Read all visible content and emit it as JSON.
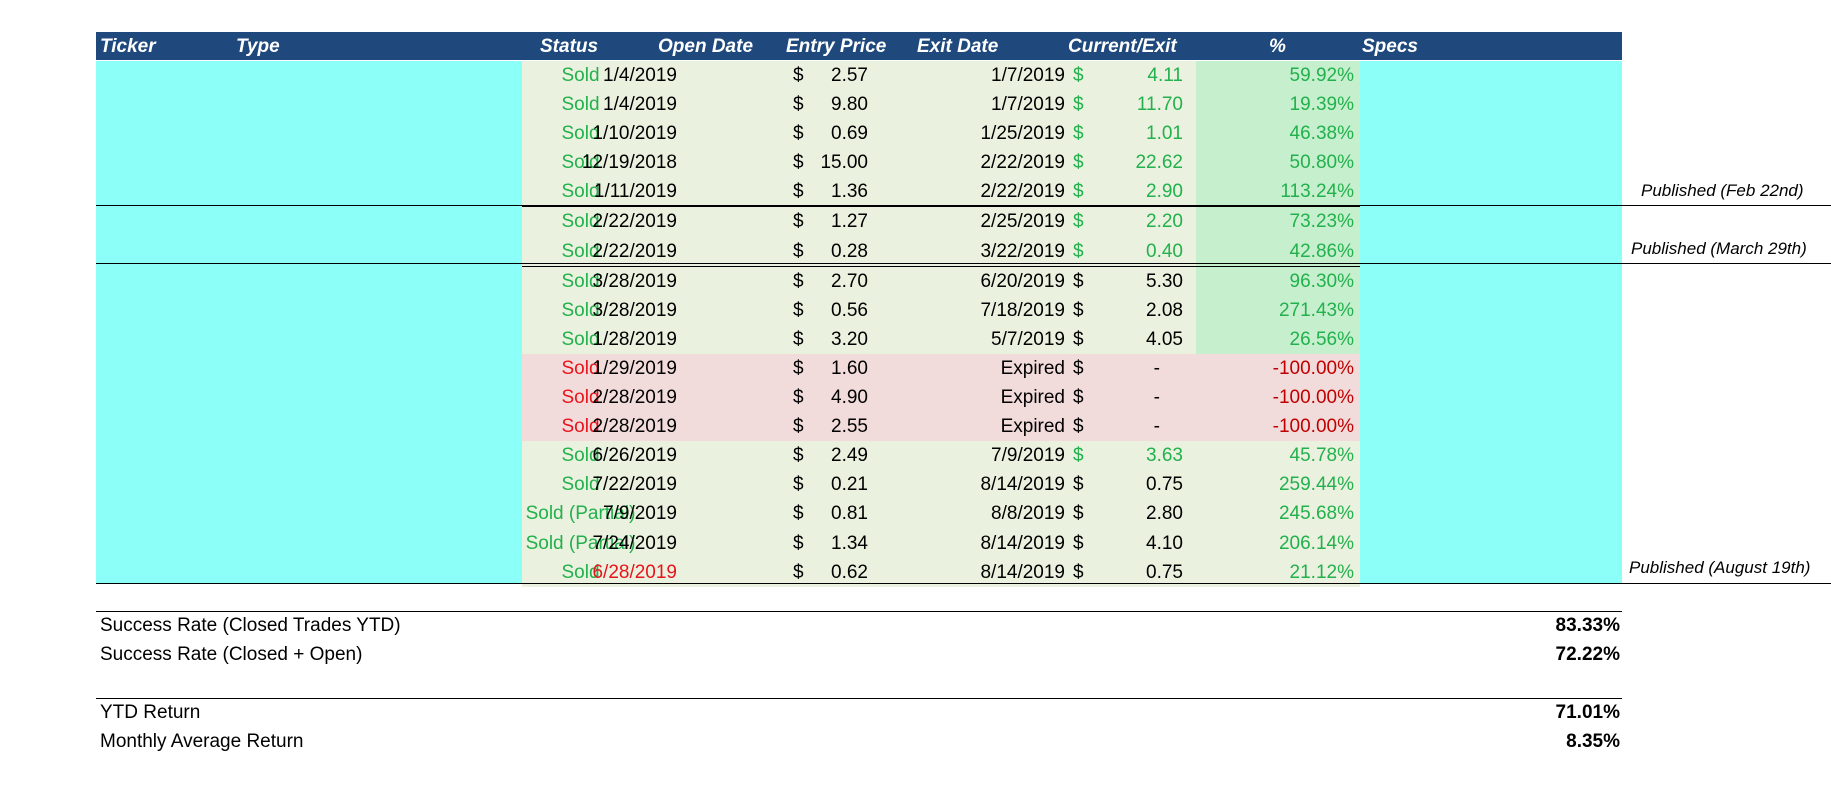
{
  "header": {
    "ticker": "Ticker",
    "type": "Type",
    "status": "Status",
    "open_date": "Open Date",
    "entry_price": "Entry Price",
    "exit_date": "Exit Date",
    "current_exit": "Current/Exit",
    "pct": "%",
    "specs": "Specs"
  },
  "currency_symbol": "$",
  "rows": [
    {
      "status": "Sold",
      "open": "1/4/2019",
      "entry": "2.57",
      "exit": "1/7/2019",
      "current": "4.11",
      "pct": "59.92%"
    },
    {
      "status": "Sold",
      "open": "1/4/2019",
      "entry": "9.80",
      "exit": "1/7/2019",
      "current": "11.70",
      "pct": "19.39%"
    },
    {
      "status": "Sold",
      "open": "1/10/2019",
      "entry": "0.69",
      "exit": "1/25/2019",
      "current": "1.01",
      "pct": "46.38%"
    },
    {
      "status": "Sold",
      "open": "12/19/2018",
      "entry": "15.00",
      "exit": "2/22/2019",
      "current": "22.62",
      "pct": "50.80%"
    },
    {
      "status": "Sold",
      "open": "1/11/2019",
      "entry": "1.36",
      "exit": "2/22/2019",
      "current": "2.90",
      "pct": "113.24%"
    },
    {
      "status": "Sold",
      "open": "2/22/2019",
      "entry": "1.27",
      "exit": "2/25/2019",
      "current": "2.20",
      "pct": "73.23%"
    },
    {
      "status": "Sold",
      "open": "2/22/2019",
      "entry": "0.28",
      "exit": "3/22/2019",
      "current": "0.40",
      "pct": "42.86%"
    },
    {
      "status": "Sold",
      "open": "3/28/2019",
      "entry": "2.70",
      "exit": "6/20/2019",
      "current": "5.30",
      "pct": "96.30%"
    },
    {
      "status": "Sold",
      "open": "3/28/2019",
      "entry": "0.56",
      "exit": "7/18/2019",
      "current": "2.08",
      "pct": "271.43%"
    },
    {
      "status": "Sold",
      "open": "1/28/2019",
      "entry": "3.20",
      "exit": "5/7/2019",
      "current": "4.05",
      "pct": "26.56%"
    },
    {
      "status": "Sold",
      "open": "1/29/2019",
      "entry": "1.60",
      "exit": "Expired",
      "current": "-",
      "pct": "-100.00%"
    },
    {
      "status": "Sold",
      "open": "2/28/2019",
      "entry": "4.90",
      "exit": "Expired",
      "current": "-",
      "pct": "-100.00%"
    },
    {
      "status": "Sold",
      "open": "2/28/2019",
      "entry": "2.55",
      "exit": "Expired",
      "current": "-",
      "pct": "-100.00%"
    },
    {
      "status": "Sold",
      "open": "6/26/2019",
      "entry": "2.49",
      "exit": "7/9/2019",
      "current": "3.63",
      "pct": "45.78%"
    },
    {
      "status": "Sold",
      "open": "7/22/2019",
      "entry": "0.21",
      "exit": "8/14/2019",
      "current": "0.75",
      "pct": "259.44%"
    },
    {
      "status": "Sold (Partial)",
      "open": "7/9/2019",
      "entry": "0.81",
      "exit": "8/8/2019",
      "current": "2.80",
      "pct": "245.68%"
    },
    {
      "status": "Sold (Partial)",
      "open": "7/24/2019",
      "entry": "1.34",
      "exit": "8/14/2019",
      "current": "4.10",
      "pct": "206.14%"
    },
    {
      "status": "Sold",
      "open": "6/28/2019",
      "entry": "0.62",
      "exit": "8/14/2019",
      "current": "0.75",
      "pct": "21.12%"
    }
  ],
  "notes": {
    "feb": "Published (Feb 22nd)",
    "march": "Published (March 29th)",
    "august": "Published (August 19th)"
  },
  "summary": {
    "success_closed_label": "Success Rate (Closed Trades YTD)",
    "success_closed_value": "83.33%",
    "success_open_label": "Success Rate (Closed + Open)",
    "success_open_value": "72.22%",
    "ytd_label": "YTD Return",
    "ytd_value": "71.01%",
    "monthly_label": "Monthly Average Return",
    "monthly_value": "8.35%"
  },
  "colors": {
    "header_bg": "#1f497d",
    "ticker_fill": "#8cfff9",
    "row_fill": "#ebf1df",
    "loss_fill": "#f2dcdb",
    "gain_fill": "#c6efce",
    "gain_text": "#22b14c",
    "loss_text": "#e8141c"
  }
}
